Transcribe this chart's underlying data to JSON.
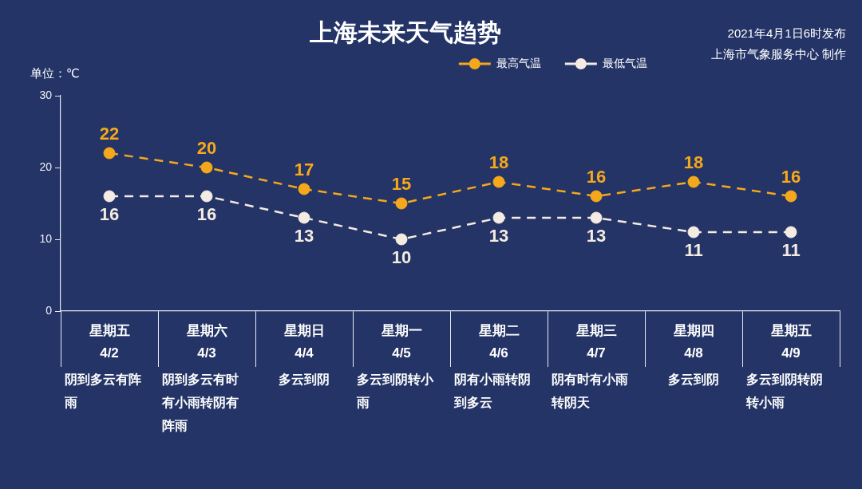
{
  "chart_data": {
    "type": "line",
    "title": "上海未来天气趋势",
    "ylabel": "单位：℃",
    "categories": [
      "星期五\n4/2",
      "星期六\n4/3",
      "星期日\n4/4",
      "星期一\n4/5",
      "星期二\n4/6",
      "星期三\n4/7",
      "星期四\n4/8",
      "星期五\n4/9"
    ],
    "series": [
      {
        "name": "最高气温",
        "color": "#f5a81c",
        "values": [
          22,
          20,
          17,
          15,
          18,
          16,
          18,
          16
        ]
      },
      {
        "name": "最低气温",
        "color": "#f4ebe2",
        "values": [
          16,
          16,
          13,
          10,
          13,
          13,
          11,
          11
        ]
      }
    ],
    "ylim": [
      0,
      30
    ],
    "yticks": [
      0,
      10,
      20,
      30
    ],
    "legend": "top right",
    "marker": "circle",
    "line_style": "dashed",
    "data_labels": true,
    "annotations": [
      "2021年4月1日6时发布",
      "上海市气象服务中心 制作",
      "阴到多云有阵雨",
      "阴到多云有时有小雨转阴有阵雨",
      "多云到阴",
      "多云到阴转小雨",
      "阴有小雨转阴到多云",
      "阴有时有小雨转阴天",
      "多云到阴",
      "多云到阴转阴转小雨"
    ]
  }
}
